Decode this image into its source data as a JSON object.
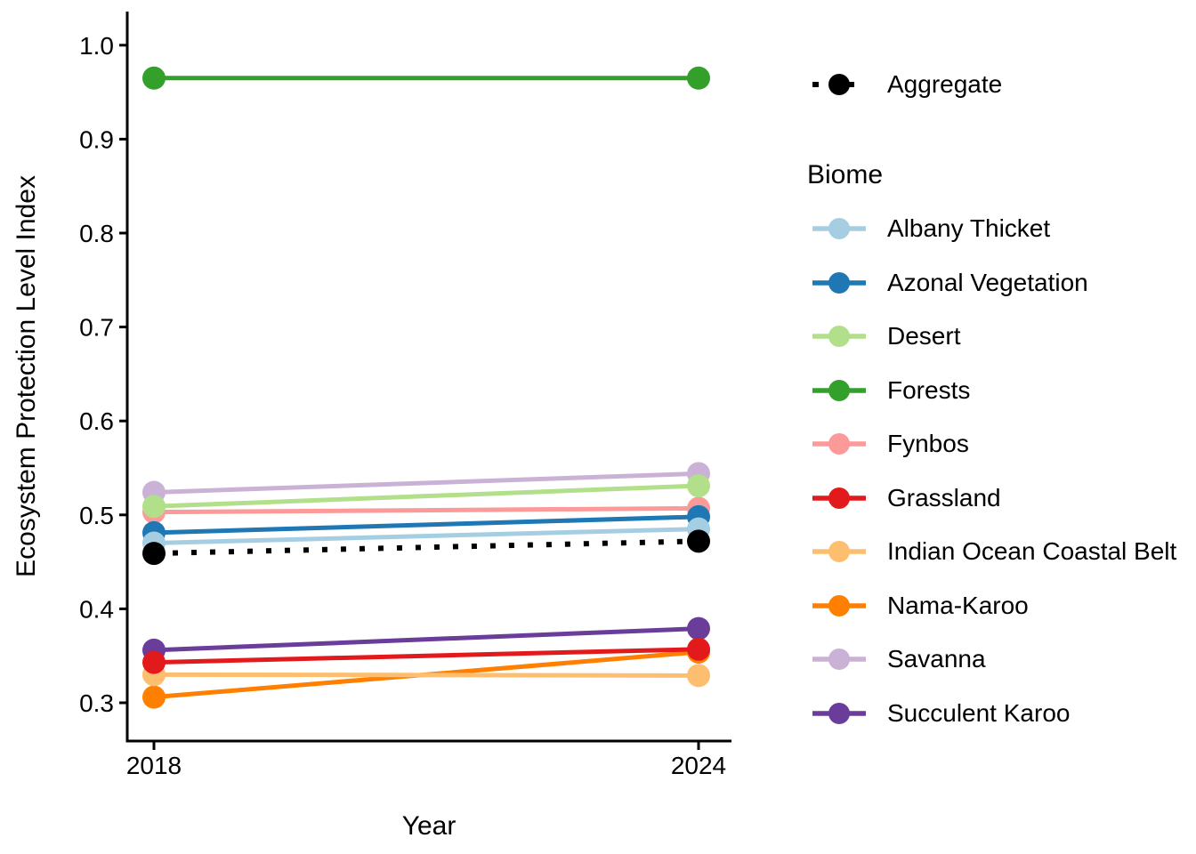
{
  "figure": {
    "background": "#ffffff",
    "axis_color": "#000000",
    "text_color": "#000000"
  },
  "chart_data": {
    "type": "line",
    "title": "",
    "xlabel": "Year",
    "ylabel": "Ecosystem Protection Level Index",
    "x": [
      2018,
      2024
    ],
    "x_tick_labels": [
      "2018",
      "2024"
    ],
    "y_ticks": [
      0.3,
      0.4,
      0.5,
      0.6,
      0.7,
      0.8,
      0.9,
      1.0
    ],
    "y_tick_labels": [
      "0.3",
      "0.4",
      "0.5",
      "0.6",
      "0.7",
      "0.8",
      "0.9",
      "1.0"
    ],
    "xlim": [
      2017.7,
      2024.37
    ],
    "ylim": [
      0.26,
      1.04
    ],
    "grid": false,
    "legend_position": "right",
    "legend_title": "Biome",
    "aggregate_series": {
      "name": "Aggregate",
      "color": "#000000",
      "linetype": "dotted",
      "values": [
        0.459,
        0.472
      ]
    },
    "series": [
      {
        "name": "Albany Thicket",
        "color": "#a6cee3",
        "values": [
          0.47,
          0.485
        ]
      },
      {
        "name": "Azonal Vegetation",
        "color": "#1f78b4",
        "values": [
          0.481,
          0.498
        ]
      },
      {
        "name": "Desert",
        "color": "#b2df8a",
        "values": [
          0.509,
          0.531
        ]
      },
      {
        "name": "Forests",
        "color": "#33a02c",
        "values": [
          0.965,
          0.965
        ]
      },
      {
        "name": "Fynbos",
        "color": "#fb9a99",
        "values": [
          0.503,
          0.507
        ]
      },
      {
        "name": "Grassland",
        "color": "#e31a1c",
        "values": [
          0.343,
          0.357
        ]
      },
      {
        "name": "Indian Ocean Coastal Belt",
        "color": "#fdbf6f",
        "values": [
          0.33,
          0.329
        ]
      },
      {
        "name": "Nama-Karoo",
        "color": "#ff7f00",
        "values": [
          0.306,
          0.354
        ]
      },
      {
        "name": "Savanna",
        "color": "#cab2d6",
        "values": [
          0.524,
          0.544
        ]
      },
      {
        "name": "Succulent Karoo",
        "color": "#6a3d9a",
        "values": [
          0.356,
          0.379
        ]
      }
    ]
  }
}
